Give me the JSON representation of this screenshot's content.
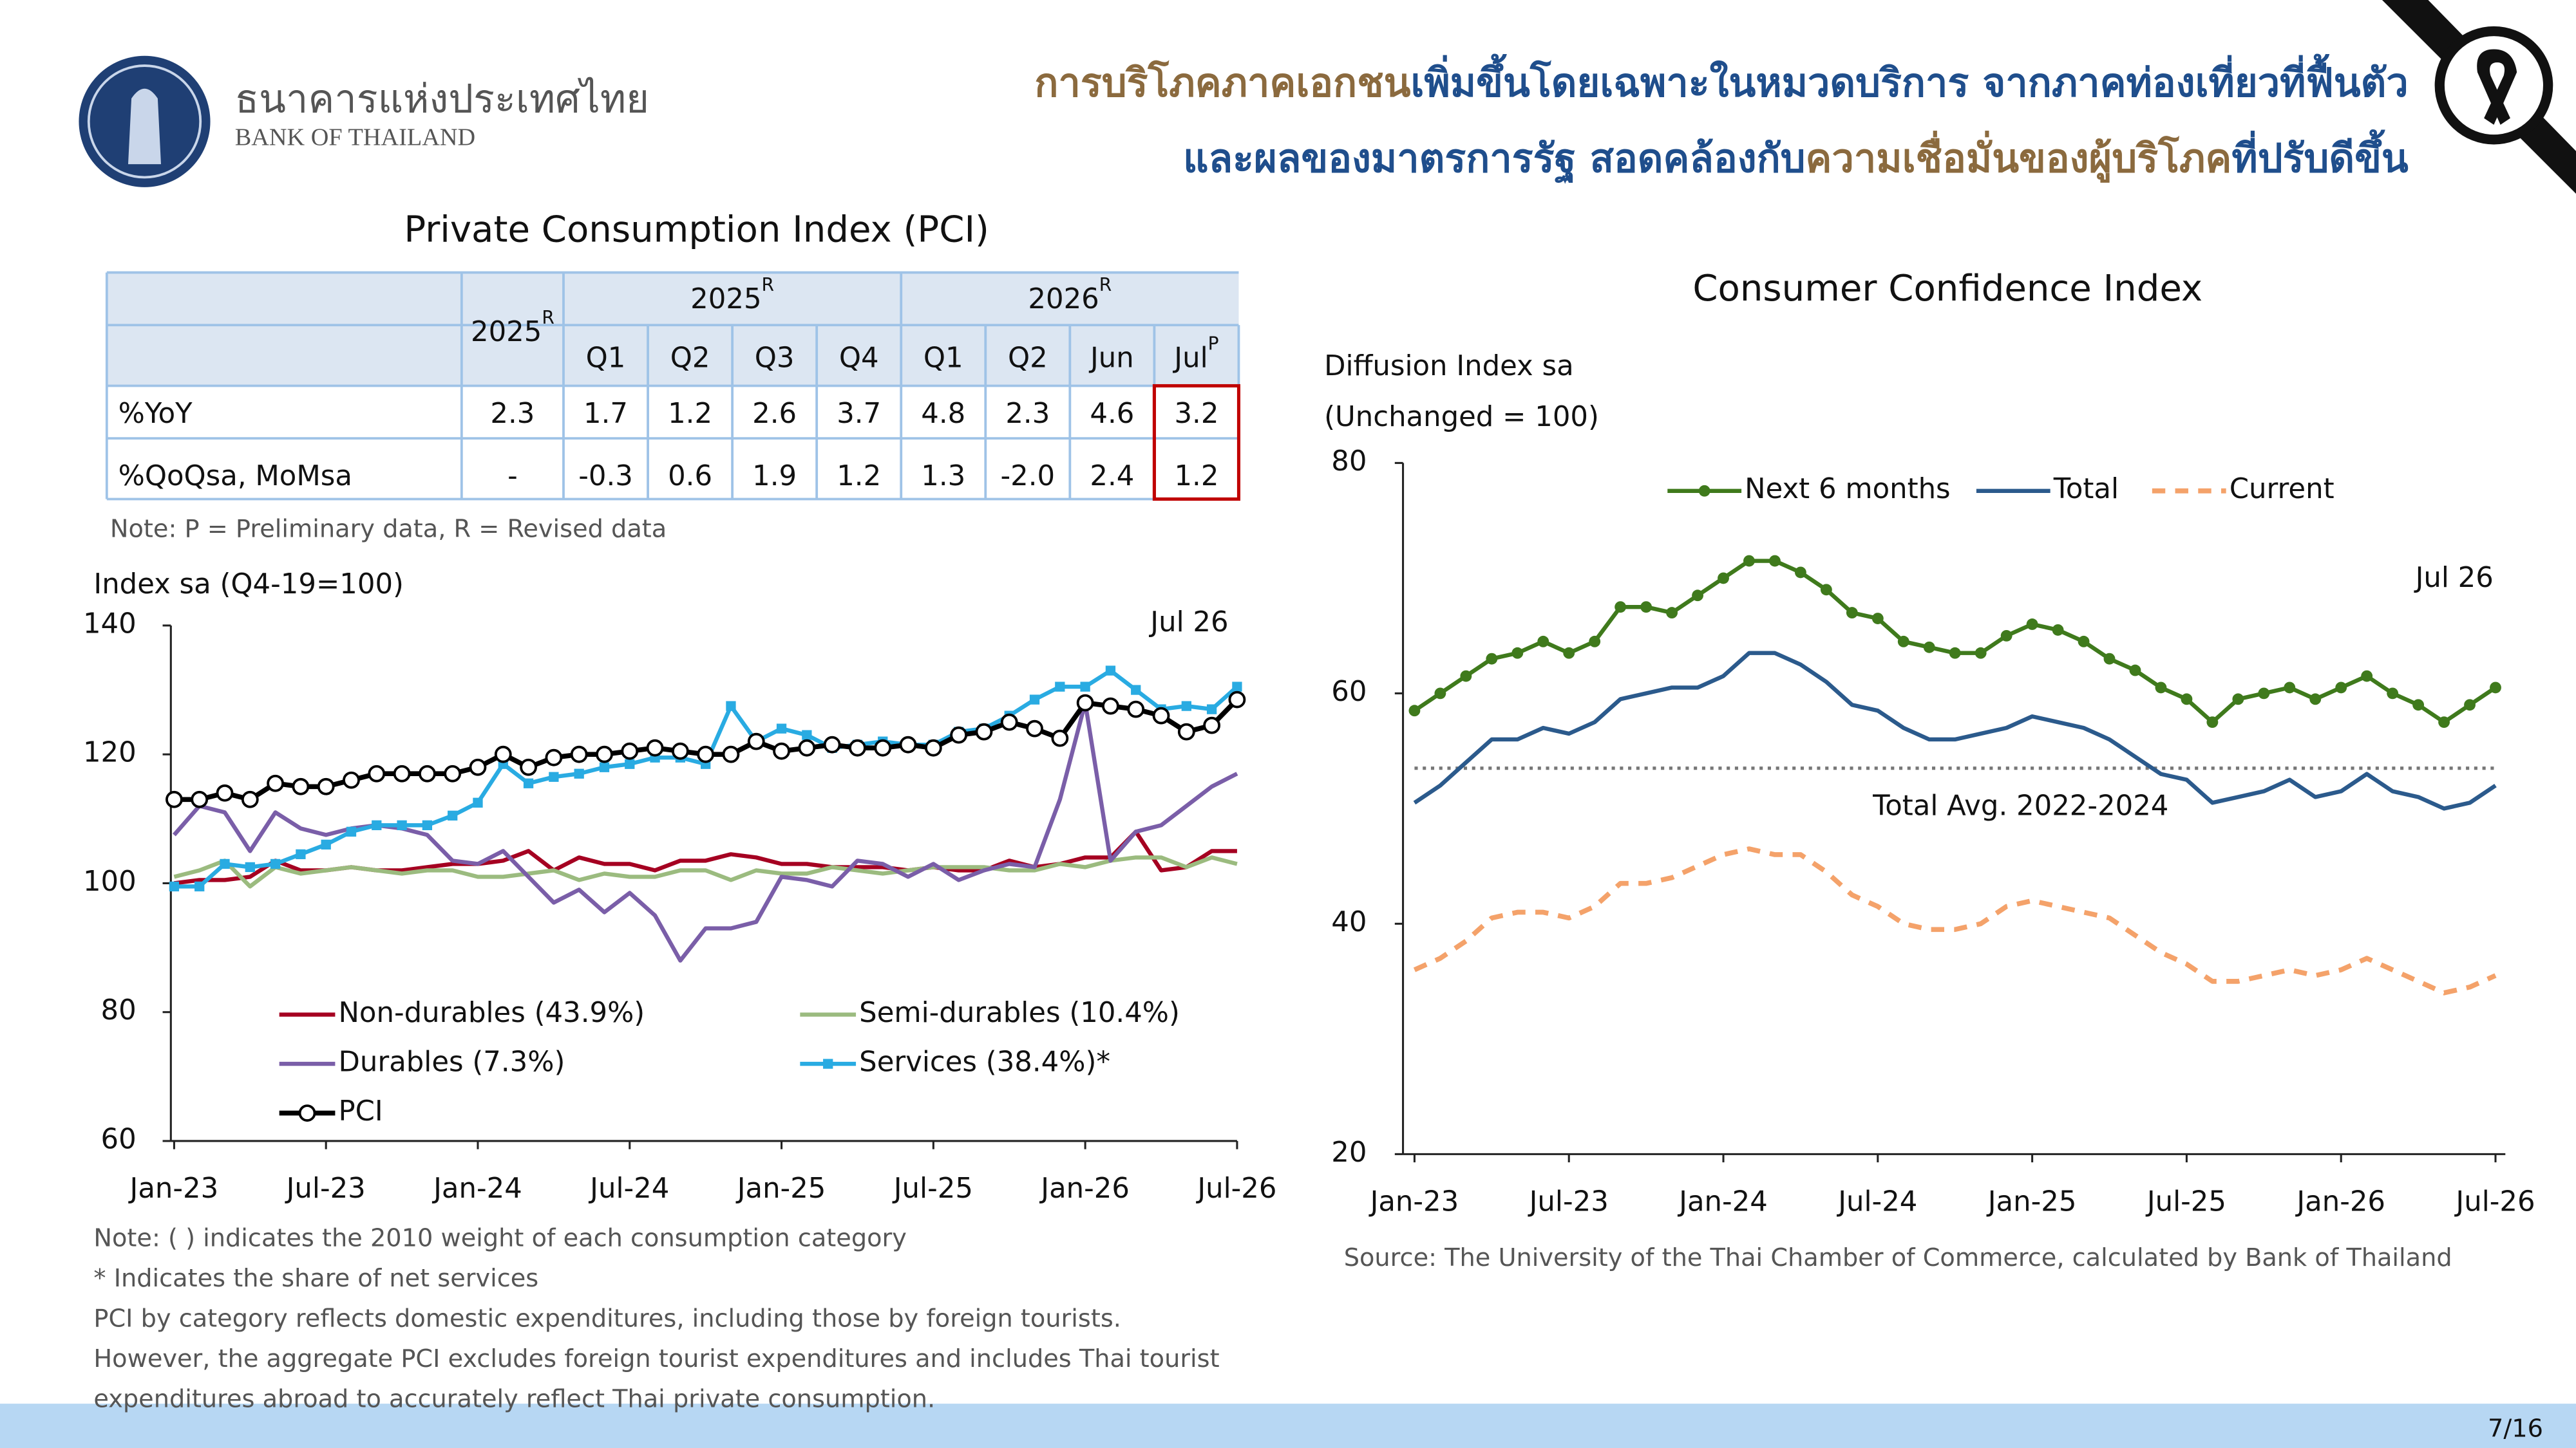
{
  "header": {
    "logo_thai": "ธนาคารแห่งประเทศไทย",
    "logo_english": "BANK OF THAILAND",
    "title_lines": [
      [
        {
          "text": "การบริโภคภาคเอกชน",
          "color": "#8b6a3e"
        },
        {
          "text": "เพิ่มขึ้นโดยเฉพาะในหมวดบริการ จากภาคท่องเที่ยวที่ฟื้นตัว",
          "color": "#1f4e8c"
        }
      ],
      [
        {
          "text": "และผลของมาตรการรัฐ สอดคล้องกับ",
          "color": "#1f4e8c"
        },
        {
          "text": "ความเชื่อมั่นของผู้บริโภค",
          "color": "#8b6a3e"
        },
        {
          "text": "ที่ปรับดีขึ้น",
          "color": "#1f4e8c"
        }
      ]
    ]
  },
  "table": {
    "title": "Private Consumption Index (PCI)",
    "annual": {
      "label": "2025",
      "sup": "R"
    },
    "groups": [
      {
        "label": "2025",
        "sup": "R"
      },
      {
        "label": "2026",
        "sup": "R"
      }
    ],
    "subheaders": [
      {
        "label": "Q1"
      },
      {
        "label": "Q2"
      },
      {
        "label": "Q3"
      },
      {
        "label": "Q4"
      },
      {
        "label": "Q1"
      },
      {
        "label": "Q2"
      },
      {
        "label": "Jun"
      },
      {
        "label": "Jul",
        "sup": "P"
      }
    ],
    "rows": [
      {
        "label": "%YoY",
        "cells": [
          "2.3",
          "1.7",
          "1.2",
          "2.6",
          "3.7",
          "4.8",
          "2.3",
          "4.6",
          "3.2"
        ]
      },
      {
        "label": "%QoQsa, MoMsa",
        "cells": [
          "-",
          "-0.3",
          "0.6",
          "1.9",
          "1.2",
          "1.3",
          "-2.0",
          "2.4",
          "1.2"
        ]
      }
    ],
    "note": "Note: P = Preliminary data, R = Revised data"
  },
  "chart_data": [
    {
      "type": "line",
      "ylabel": "Index sa (Q4-19=100)",
      "annotation": "Jul 26",
      "categories": [
        "Jan-23",
        null,
        null,
        null,
        null,
        null,
        "Jul-23",
        null,
        null,
        null,
        null,
        null,
        "Jan-24",
        null,
        null,
        null,
        null,
        null,
        "Jul-24",
        null,
        null,
        null,
        null,
        null,
        "Jan-25",
        null,
        null,
        null,
        null,
        null,
        "Jul-25",
        null,
        null,
        null,
        null,
        null,
        "Jan-26",
        null,
        null,
        null,
        null,
        null,
        "Jul-26"
      ],
      "ylim": [
        60,
        140
      ],
      "yticks": [
        60,
        80,
        100,
        120,
        140
      ],
      "grid": false,
      "series": [
        {
          "name": "Non-durables (43.9%)",
          "color": "#a50021",
          "values": [
            100,
            100.5,
            100.5,
            101,
            103.5,
            102,
            102,
            102.5,
            102,
            102,
            102.5,
            103,
            103,
            103.5,
            105,
            102,
            104,
            103,
            103,
            102,
            103.5,
            103.5,
            104.5,
            104,
            103,
            103,
            102.5,
            102.5,
            102.5,
            102,
            102.5,
            102,
            102,
            103.5,
            102.5,
            103,
            104,
            104,
            108,
            102,
            102.5,
            105,
            105
          ]
        },
        {
          "name": "Semi-durables (10.4%)",
          "color": "#9bbb7f",
          "values": [
            101,
            102,
            103.5,
            99.5,
            102.5,
            101.5,
            102,
            102.5,
            102,
            101.5,
            102,
            102,
            101,
            101,
            101.5,
            102,
            100.5,
            101.5,
            101,
            101,
            102,
            102,
            100.5,
            102,
            101.5,
            101.5,
            102.5,
            102,
            101.5,
            102,
            102.5,
            102.5,
            102.5,
            102,
            102,
            103,
            102.5,
            103.5,
            104,
            104,
            102.5,
            104,
            103
          ]
        },
        {
          "name": "Durables (7.3%)",
          "color": "#7a5ea8",
          "values": [
            107.5,
            112,
            111,
            105,
            111,
            108.5,
            107.5,
            108.5,
            109,
            108.5,
            107.5,
            103.5,
            103,
            105,
            101,
            97,
            99,
            95.5,
            98.5,
            95,
            88,
            93,
            93,
            94,
            101,
            100.5,
            99.5,
            103.5,
            103,
            101,
            103,
            100.5,
            102,
            103,
            102.5,
            113,
            128,
            103.5,
            108,
            109,
            112,
            115,
            117
          ]
        },
        {
          "name": "Services (38.4%)*",
          "color": "#29abe2",
          "marker": "square",
          "values": [
            99.5,
            99.5,
            103,
            102.5,
            103,
            104.5,
            106,
            108,
            109,
            109,
            109,
            110.5,
            112.5,
            118.5,
            115.5,
            116.5,
            117,
            118,
            118.5,
            119.5,
            119.5,
            118.5,
            127.5,
            122,
            124,
            123,
            121,
            121.5,
            122,
            121.5,
            121.5,
            123.5,
            124,
            126,
            128.5,
            130.5,
            130.5,
            133,
            130,
            127,
            127.5,
            127,
            130.5
          ]
        },
        {
          "name": "PCI",
          "color": "#000000",
          "marker": "open-circle",
          "width": 3,
          "values": [
            113,
            113,
            114,
            113,
            115.5,
            115,
            115,
            116,
            117,
            117,
            117,
            117,
            118,
            120,
            118,
            119.5,
            120,
            120,
            120.5,
            121,
            120.5,
            120,
            120,
            122,
            120.5,
            121,
            121.5,
            121,
            121,
            121.5,
            121,
            123,
            123.5,
            125,
            124,
            122.5,
            128,
            127.5,
            127,
            126,
            123.5,
            124.5,
            128.5
          ]
        }
      ],
      "notes": [
        "Note: ( ) indicates the 2010 weight of each consumption category",
        "* Indicates the share of net services",
        "PCI by category reflects domestic expenditures, including those by foreign tourists.",
        "However, the aggregate PCI excludes foreign tourist expenditures and includes Thai tourist",
        "expenditures abroad to accurately reflect Thai private consumption."
      ]
    },
    {
      "type": "line",
      "title": "Consumer Confidence Index",
      "ylabel_lines": [
        "Diffusion Index sa",
        "(Unchanged = 100)"
      ],
      "annotation": "Jul 26",
      "categories": [
        "Jan-23",
        null,
        null,
        null,
        null,
        null,
        "Jul-23",
        null,
        null,
        null,
        null,
        null,
        "Jan-24",
        null,
        null,
        null,
        null,
        null,
        "Jul-24",
        null,
        null,
        null,
        null,
        null,
        "Jan-25",
        null,
        null,
        null,
        null,
        null,
        "Jul-25",
        null,
        null,
        null,
        null,
        null,
        "Jan-26",
        null,
        null,
        null,
        null,
        null,
        "Jul-26"
      ],
      "ylim": [
        20,
        80
      ],
      "yticks": [
        20,
        40,
        60,
        80
      ],
      "grid": false,
      "reference_line": {
        "value": 53.5,
        "label": "Total Avg. 2022-2024"
      },
      "series": [
        {
          "name": "Next 6 months",
          "color": "#3f7a1c",
          "marker": "circle",
          "values": [
            58.5,
            60,
            61.5,
            63,
            63.5,
            64.5,
            63.5,
            64.5,
            67.5,
            67.5,
            67,
            68.5,
            70,
            71.5,
            71.5,
            70.5,
            69,
            67,
            66.5,
            64.5,
            64,
            63.5,
            63.5,
            65,
            66,
            65.5,
            64.5,
            63,
            62,
            60.5,
            59.5,
            57.5,
            59.5,
            60,
            60.5,
            59.5,
            60.5,
            61.5,
            60,
            59,
            57.5,
            59,
            60.5
          ]
        },
        {
          "name": "Total",
          "color": "#2b5a8c",
          "values": [
            50.5,
            52,
            54,
            56,
            56,
            57,
            56.5,
            57.5,
            59.5,
            60,
            60.5,
            60.5,
            61.5,
            63.5,
            63.5,
            62.5,
            61,
            59,
            58.5,
            57,
            56,
            56,
            56.5,
            57,
            58,
            57.5,
            57,
            56,
            54.5,
            53,
            52.5,
            50.5,
            51,
            51.5,
            52.5,
            51,
            51.5,
            53,
            51.5,
            51,
            50,
            50.5,
            52
          ]
        },
        {
          "name": "Current",
          "color": "#f4a26a",
          "dash": true,
          "values": [
            36,
            37,
            38.5,
            40.5,
            41,
            41,
            40.5,
            41.5,
            43.5,
            43.5,
            44,
            45,
            46,
            46.5,
            46,
            46,
            44.5,
            42.5,
            41.5,
            40,
            39.5,
            39.5,
            40,
            41.5,
            42,
            41.5,
            41,
            40.5,
            39,
            37.5,
            36.5,
            35,
            35,
            35.5,
            36,
            35.5,
            36,
            37,
            36,
            35,
            34,
            34.5,
            35.5
          ]
        }
      ],
      "source": "Source:  The University of the Thai Chamber of Commerce, calculated by Bank of Thailand"
    }
  ],
  "page_number": "7/16"
}
